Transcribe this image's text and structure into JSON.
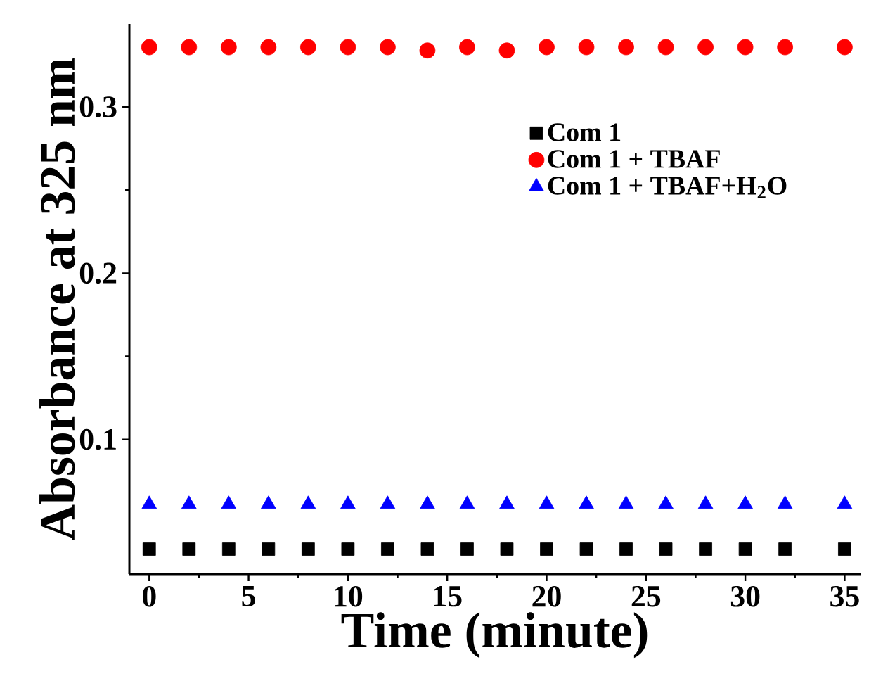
{
  "chart_data": {
    "type": "scatter",
    "xlabel": "Time (minute)",
    "ylabel": "Absorbance at 325 nm",
    "x": [
      0,
      2,
      4,
      6,
      8,
      10,
      12,
      14,
      16,
      18,
      20,
      22,
      24,
      26,
      28,
      30,
      32,
      35
    ],
    "series": [
      {
        "name": "Com 1",
        "color": "#000000",
        "marker": "square",
        "values": [
          0.034,
          0.034,
          0.034,
          0.034,
          0.034,
          0.034,
          0.034,
          0.034,
          0.034,
          0.034,
          0.034,
          0.034,
          0.034,
          0.034,
          0.034,
          0.034,
          0.034,
          0.034
        ]
      },
      {
        "name": "Com 1 + TBAF",
        "color": "#ff0000",
        "marker": "circle",
        "values": [
          0.336,
          0.336,
          0.336,
          0.336,
          0.336,
          0.336,
          0.336,
          0.334,
          0.336,
          0.334,
          0.336,
          0.336,
          0.336,
          0.336,
          0.336,
          0.336,
          0.336,
          0.336
        ]
      },
      {
        "name": "Com 1 + TBAF+H$_{2}$O",
        "color": "#0000ff",
        "marker": "triangle",
        "values": [
          0.061,
          0.061,
          0.061,
          0.061,
          0.061,
          0.061,
          0.061,
          0.061,
          0.061,
          0.061,
          0.061,
          0.061,
          0.061,
          0.061,
          0.061,
          0.061,
          0.061,
          0.061
        ]
      }
    ],
    "xlim": [
      -1,
      35.8
    ],
    "ylim": [
      0.019,
      0.35
    ],
    "xticks": [
      0,
      5,
      10,
      15,
      20,
      25,
      30,
      35
    ],
    "yticks": [
      0.1,
      0.2,
      0.3
    ],
    "grid": false,
    "legend": "top right"
  }
}
